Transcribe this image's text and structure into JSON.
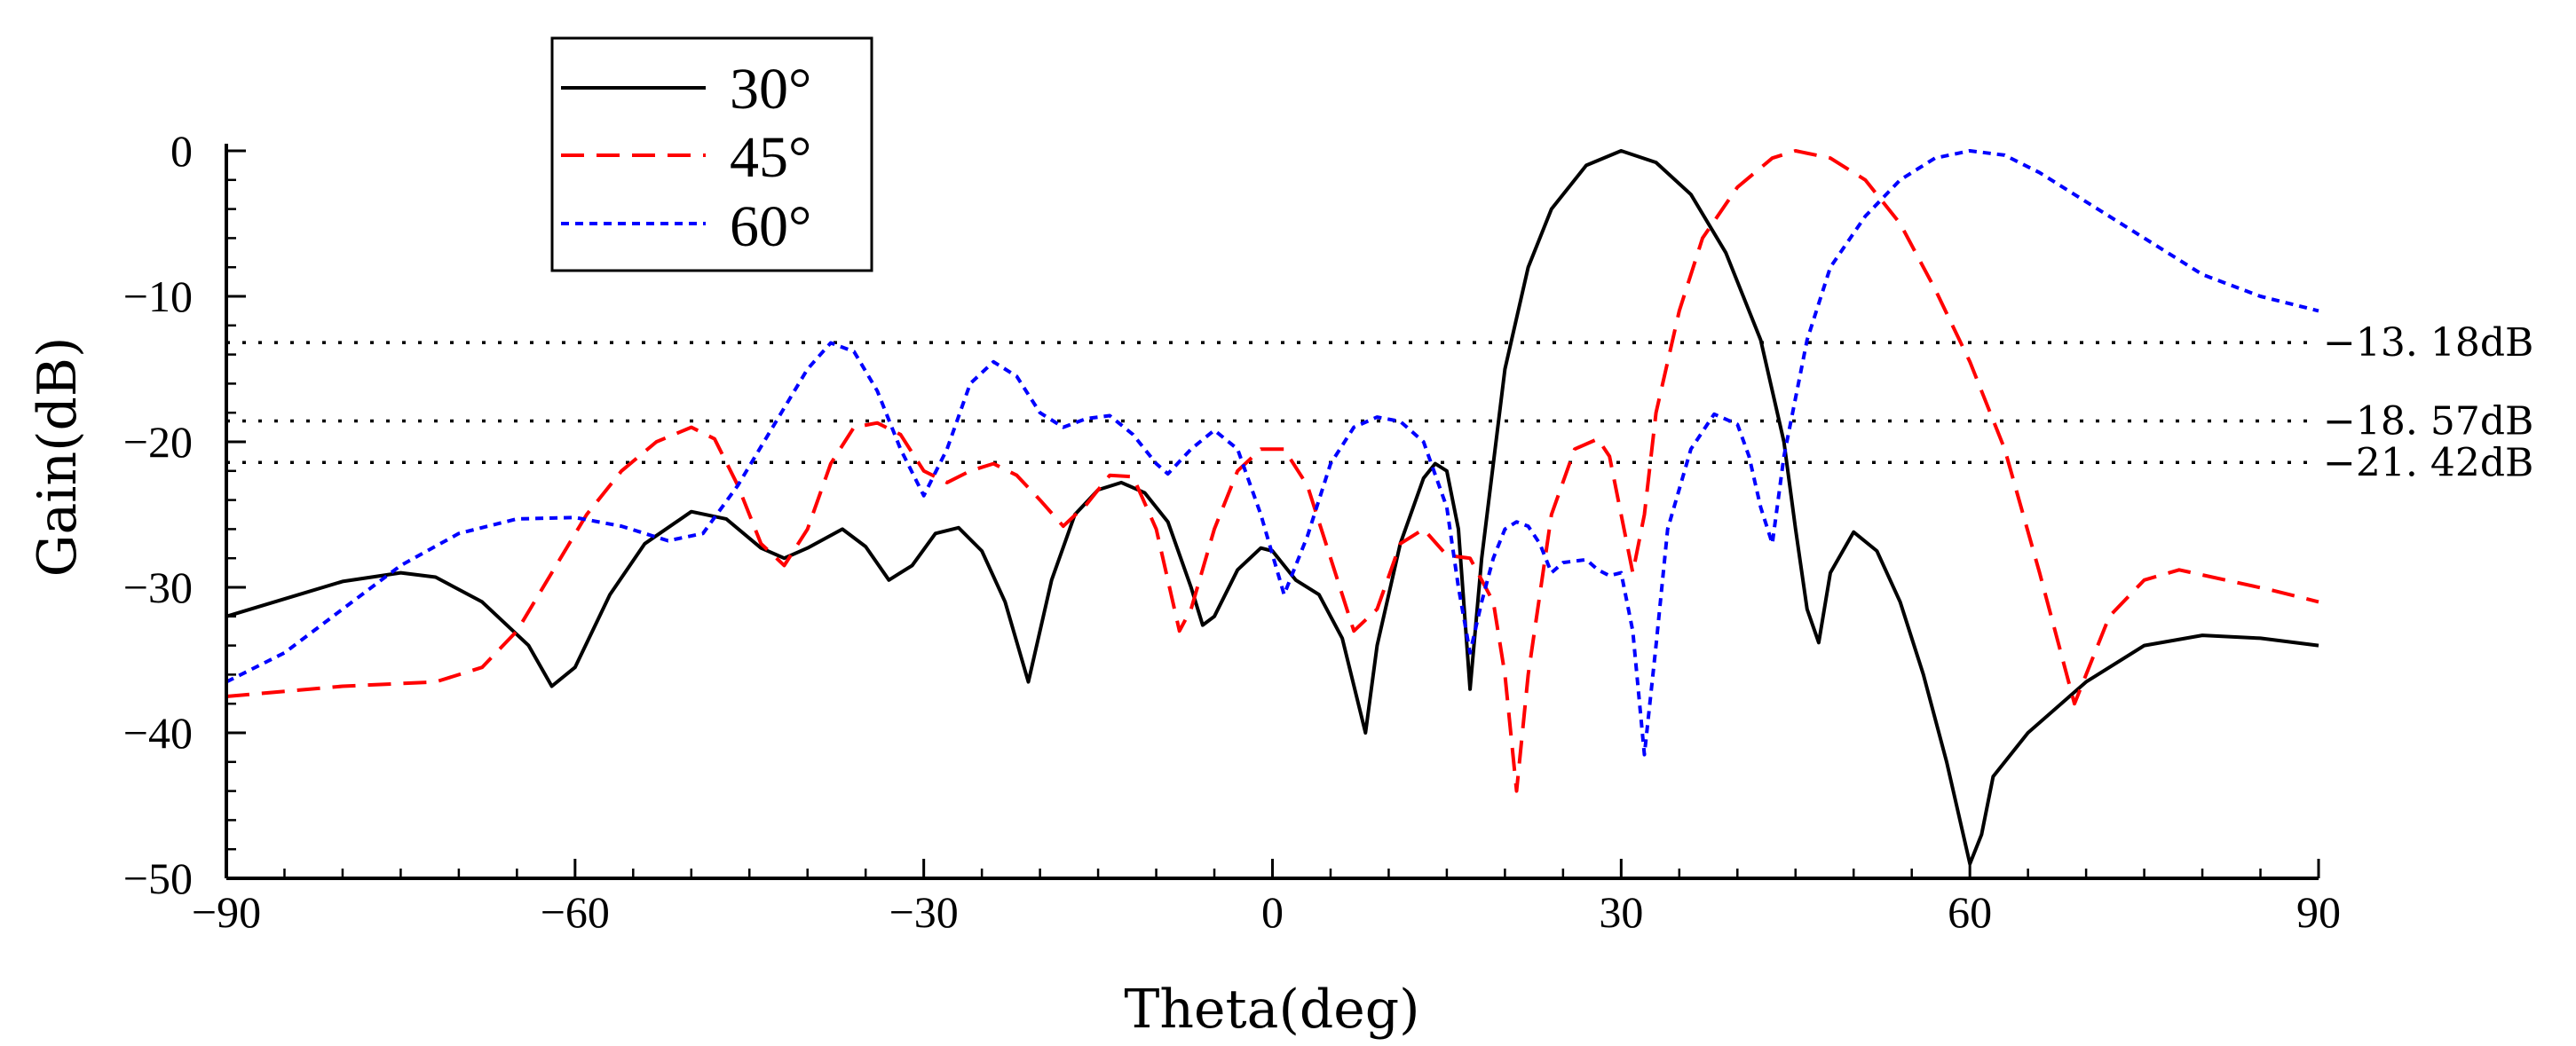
{
  "chart_data": {
    "type": "line",
    "title": "",
    "xlabel": "Theta(deg)",
    "ylabel": "Gain(dB)",
    "xlim": [
      -90,
      90
    ],
    "ylim": [
      -50,
      0
    ],
    "xticks": [
      -90,
      -60,
      -30,
      0,
      30,
      60,
      90
    ],
    "yticks": [
      0,
      -10,
      -20,
      -30,
      -40,
      -50
    ],
    "xtick_labels": [
      "−90",
      "−60",
      "−30",
      "0",
      "30",
      "60",
      "90"
    ],
    "ytick_labels": [
      "0",
      "−10",
      "−20",
      "−30",
      "−40",
      "−50"
    ],
    "legend_position": "top-left",
    "reference_lines": [
      {
        "value": -13.18,
        "label": "−13. 18dB"
      },
      {
        "value": -18.57,
        "label": "−18. 57dB"
      },
      {
        "value": -21.42,
        "label": "−21. 42dB"
      }
    ],
    "series": [
      {
        "name": "30°",
        "color": "#000000",
        "dash": "solid",
        "points": [
          [
            -90,
            -32
          ],
          [
            -85,
            -30.8
          ],
          [
            -80,
            -29.6
          ],
          [
            -75,
            -29
          ],
          [
            -72,
            -29.3
          ],
          [
            -68,
            -31
          ],
          [
            -64,
            -34
          ],
          [
            -62,
            -36.8
          ],
          [
            -60,
            -35.5
          ],
          [
            -57,
            -30.5
          ],
          [
            -54,
            -27
          ],
          [
            -50,
            -24.8
          ],
          [
            -47,
            -25.3
          ],
          [
            -44,
            -27.3
          ],
          [
            -42,
            -28
          ],
          [
            -40,
            -27.3
          ],
          [
            -37,
            -26
          ],
          [
            -35,
            -27.2
          ],
          [
            -33,
            -29.5
          ],
          [
            -31,
            -28.5
          ],
          [
            -29,
            -26.3
          ],
          [
            -27,
            -25.9
          ],
          [
            -25,
            -27.5
          ],
          [
            -23,
            -31
          ],
          [
            -21,
            -36.5
          ],
          [
            -19,
            -29.5
          ],
          [
            -17,
            -25
          ],
          [
            -15,
            -23.3
          ],
          [
            -13,
            -22.8
          ],
          [
            -11,
            -23.5
          ],
          [
            -9,
            -25.5
          ],
          [
            -7,
            -30
          ],
          [
            -6,
            -32.6
          ],
          [
            -5,
            -32
          ],
          [
            -3,
            -28.8
          ],
          [
            -1,
            -27.3
          ],
          [
            0,
            -27.5
          ],
          [
            2,
            -29.5
          ],
          [
            4,
            -30.5
          ],
          [
            6,
            -33.5
          ],
          [
            8,
            -40
          ],
          [
            9,
            -34
          ],
          [
            11,
            -27
          ],
          [
            13,
            -22.5
          ],
          [
            14,
            -21.5
          ],
          [
            15,
            -22
          ],
          [
            16,
            -26
          ],
          [
            17,
            -37
          ],
          [
            18,
            -28
          ],
          [
            20,
            -15
          ],
          [
            22,
            -8
          ],
          [
            24,
            -4
          ],
          [
            27,
            -1
          ],
          [
            30,
            0
          ],
          [
            33,
            -0.8
          ],
          [
            36,
            -3
          ],
          [
            39,
            -7
          ],
          [
            42,
            -13
          ],
          [
            44,
            -20
          ],
          [
            45,
            -26
          ],
          [
            46,
            -31.5
          ],
          [
            47,
            -33.8
          ],
          [
            48,
            -29
          ],
          [
            50,
            -26.2
          ],
          [
            52,
            -27.5
          ],
          [
            54,
            -31
          ],
          [
            56,
            -36
          ],
          [
            58,
            -42
          ],
          [
            60,
            -49
          ],
          [
            61,
            -47
          ],
          [
            62,
            -43
          ],
          [
            65,
            -40
          ],
          [
            70,
            -36.5
          ],
          [
            75,
            -34
          ],
          [
            80,
            -33.3
          ],
          [
            85,
            -33.5
          ],
          [
            90,
            -34
          ]
        ]
      },
      {
        "name": "45°",
        "color": "#ff0000",
        "dash": "long",
        "points": [
          [
            -90,
            -37.5
          ],
          [
            -80,
            -36.8
          ],
          [
            -72,
            -36.5
          ],
          [
            -68,
            -35.5
          ],
          [
            -65,
            -33
          ],
          [
            -62,
            -29
          ],
          [
            -59,
            -25
          ],
          [
            -56,
            -22
          ],
          [
            -53,
            -20
          ],
          [
            -50,
            -19
          ],
          [
            -48,
            -19.8
          ],
          [
            -46,
            -23
          ],
          [
            -44,
            -27
          ],
          [
            -42,
            -28.5
          ],
          [
            -40,
            -26
          ],
          [
            -38,
            -21.5
          ],
          [
            -36,
            -19
          ],
          [
            -34,
            -18.7
          ],
          [
            -32,
            -19.5
          ],
          [
            -30,
            -22
          ],
          [
            -28,
            -22.8
          ],
          [
            -26,
            -22
          ],
          [
            -24,
            -21.5
          ],
          [
            -22,
            -22.3
          ],
          [
            -20,
            -24
          ],
          [
            -18,
            -25.8
          ],
          [
            -16,
            -24.3
          ],
          [
            -14,
            -22.3
          ],
          [
            -12,
            -22.4
          ],
          [
            -10,
            -26
          ],
          [
            -8,
            -33
          ],
          [
            -7,
            -31.5
          ],
          [
            -5,
            -26
          ],
          [
            -3,
            -22
          ],
          [
            -1,
            -20.5
          ],
          [
            1,
            -20.5
          ],
          [
            3,
            -23
          ],
          [
            5,
            -28
          ],
          [
            7,
            -33
          ],
          [
            9,
            -31.5
          ],
          [
            11,
            -27
          ],
          [
            13,
            -26
          ],
          [
            15,
            -27.8
          ],
          [
            17,
            -28
          ],
          [
            19,
            -31
          ],
          [
            20,
            -36
          ],
          [
            21,
            -44
          ],
          [
            22,
            -36
          ],
          [
            24,
            -25
          ],
          [
            26,
            -20.5
          ],
          [
            28,
            -19.8
          ],
          [
            29,
            -21
          ],
          [
            30,
            -25
          ],
          [
            31,
            -29
          ],
          [
            32,
            -25
          ],
          [
            33,
            -18
          ],
          [
            35,
            -11
          ],
          [
            37,
            -6
          ],
          [
            40,
            -2.5
          ],
          [
            43,
            -0.5
          ],
          [
            45,
            0
          ],
          [
            48,
            -0.5
          ],
          [
            51,
            -2
          ],
          [
            54,
            -5
          ],
          [
            57,
            -9.5
          ],
          [
            60,
            -14.5
          ],
          [
            63,
            -20.5
          ],
          [
            66,
            -29
          ],
          [
            68,
            -35
          ],
          [
            69,
            -38
          ],
          [
            70,
            -36
          ],
          [
            72,
            -32
          ],
          [
            75,
            -29.5
          ],
          [
            78,
            -28.8
          ],
          [
            82,
            -29.5
          ],
          [
            86,
            -30.2
          ],
          [
            90,
            -31
          ]
        ]
      },
      {
        "name": "60°",
        "color": "#0000ff",
        "dash": "short",
        "points": [
          [
            -90,
            -36.5
          ],
          [
            -85,
            -34.5
          ],
          [
            -80,
            -31.5
          ],
          [
            -75,
            -28.5
          ],
          [
            -70,
            -26.3
          ],
          [
            -65,
            -25.3
          ],
          [
            -60,
            -25.2
          ],
          [
            -56,
            -25.8
          ],
          [
            -52,
            -26.8
          ],
          [
            -49,
            -26.3
          ],
          [
            -46,
            -23
          ],
          [
            -43,
            -19
          ],
          [
            -40,
            -15
          ],
          [
            -38,
            -13.2
          ],
          [
            -36,
            -13.8
          ],
          [
            -34,
            -16.5
          ],
          [
            -32,
            -20.5
          ],
          [
            -30,
            -23.7
          ],
          [
            -28,
            -20.5
          ],
          [
            -26,
            -16
          ],
          [
            -24,
            -14.5
          ],
          [
            -22,
            -15.5
          ],
          [
            -20,
            -18
          ],
          [
            -18,
            -19
          ],
          [
            -16,
            -18.4
          ],
          [
            -14,
            -18.2
          ],
          [
            -12,
            -19.5
          ],
          [
            -10,
            -21.5
          ],
          [
            -9,
            -22.2
          ],
          [
            -7,
            -20.5
          ],
          [
            -5,
            -19.2
          ],
          [
            -3,
            -20.5
          ],
          [
            -1,
            -25
          ],
          [
            1,
            -30.5
          ],
          [
            3,
            -26.5
          ],
          [
            5,
            -21.5
          ],
          [
            7,
            -19
          ],
          [
            9,
            -18.3
          ],
          [
            11,
            -18.6
          ],
          [
            13,
            -20
          ],
          [
            15,
            -24.5
          ],
          [
            16,
            -30
          ],
          [
            17,
            -34.5
          ],
          [
            18,
            -31
          ],
          [
            19,
            -28
          ],
          [
            20,
            -26
          ],
          [
            21,
            -25.5
          ],
          [
            22,
            -25.8
          ],
          [
            23,
            -27
          ],
          [
            24,
            -29
          ],
          [
            25,
            -28.3
          ],
          [
            27,
            -28.1
          ],
          [
            28,
            -28.8
          ],
          [
            29,
            -29.2
          ],
          [
            30,
            -29
          ],
          [
            31,
            -33
          ],
          [
            32,
            -41.5
          ],
          [
            33,
            -34
          ],
          [
            34,
            -26
          ],
          [
            36,
            -20.5
          ],
          [
            38,
            -18.1
          ],
          [
            40,
            -18.8
          ],
          [
            41,
            -21
          ],
          [
            42,
            -24.5
          ],
          [
            43,
            -27
          ],
          [
            44,
            -21
          ],
          [
            46,
            -13
          ],
          [
            48,
            -8
          ],
          [
            51,
            -4.5
          ],
          [
            54,
            -2
          ],
          [
            57,
            -0.5
          ],
          [
            60,
            0
          ],
          [
            63,
            -0.3
          ],
          [
            66,
            -1.5
          ],
          [
            70,
            -3.5
          ],
          [
            75,
            -6
          ],
          [
            80,
            -8.5
          ],
          [
            85,
            -10
          ],
          [
            90,
            -11
          ]
        ]
      }
    ]
  }
}
